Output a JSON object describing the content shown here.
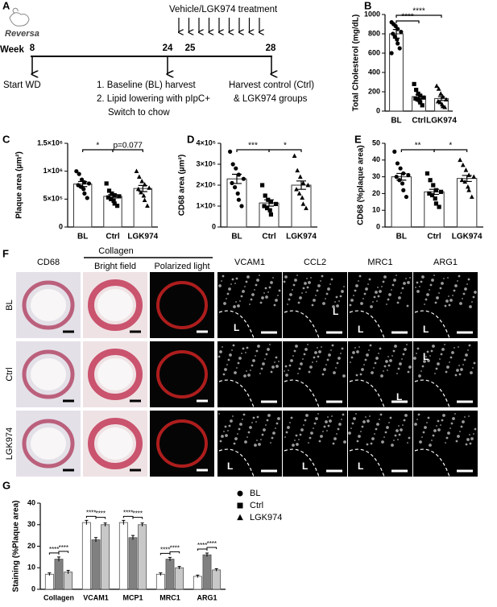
{
  "timeline": {
    "panel": "A",
    "logo": "Reversa",
    "week_label": "Week",
    "weeks": [
      8,
      24,
      25,
      28
    ],
    "treatment": "Vehicle/LGK974 treatment",
    "start": "Start WD",
    "step1": "1. Baseline (BL) harvest",
    "step2": "2. Lipid lowering with pIpC+",
    "step2b": "Switch to chow",
    "harvest1": "Harvest control (Ctrl)",
    "harvest2": "& LGK974 groups"
  },
  "micrographs": {
    "panel": "F",
    "group_label": "Collagen",
    "columns": [
      "CD68",
      "Bright field",
      "Polarized light",
      "VCAM1",
      "CCL2",
      "MRC1",
      "ARG1"
    ],
    "rows": [
      "BL",
      "Ctrl",
      "LGK974"
    ],
    "lumen_label": "L"
  },
  "chart_data": [
    {
      "type": "bar",
      "panel": "B",
      "ylabel": "Total Cholesterol (mg/dL)",
      "categories": [
        "BL",
        "Ctrl",
        "LGK974"
      ],
      "markers": [
        "circle",
        "square",
        "triangle"
      ],
      "values": [
        800,
        150,
        130
      ],
      "errors": [
        45,
        20,
        20
      ],
      "points": [
        [
          920,
          900,
          880,
          850,
          820,
          800,
          770,
          740,
          700,
          650,
          600
        ],
        [
          280,
          220,
          180,
          160,
          140,
          130,
          120,
          110,
          90,
          60
        ],
        [
          260,
          230,
          180,
          150,
          120,
          100,
          90,
          70,
          50,
          40
        ]
      ],
      "ylim": [
        0,
        1000
      ],
      "yticks": [
        0,
        200,
        400,
        600,
        800,
        1000
      ],
      "brackets": [
        {
          "between": [
            "BL",
            "Ctrl"
          ],
          "label": "****"
        },
        {
          "between": [
            "BL",
            "LGK974"
          ],
          "label": "****"
        }
      ]
    },
    {
      "type": "bar",
      "panel": "C",
      "ylabel": "Plaque area (µm²)",
      "categories": [
        "BL",
        "Ctrl",
        "LGK974"
      ],
      "markers": [
        "circle",
        "square",
        "triangle"
      ],
      "values": [
        770000,
        550000,
        690000
      ],
      "errors": [
        45000,
        30000,
        55000
      ],
      "points": [
        [
          1000000,
          950000,
          850000,
          800000,
          780000,
          750000,
          720000,
          680000,
          600000,
          520000
        ],
        [
          780000,
          650000,
          600000,
          570000,
          550000,
          530000,
          500000,
          470000,
          420000,
          380000
        ],
        [
          1000000,
          900000,
          820000,
          760000,
          700000,
          680000,
          620000,
          560000,
          480000,
          380000
        ]
      ],
      "ylim": [
        0,
        1500000
      ],
      "yticks": [
        0,
        {
          "value": 500000,
          "label": "5×10⁵"
        },
        {
          "value": 1000000,
          "label": "1×10⁶"
        },
        {
          "value": 1500000,
          "label": "1.5×10⁶"
        }
      ],
      "brackets": [
        {
          "between": [
            "BL",
            "Ctrl"
          ],
          "label": "*"
        },
        {
          "between": [
            "Ctrl",
            "LGK974"
          ],
          "label": "p=0.077"
        }
      ]
    },
    {
      "type": "bar",
      "panel": "D",
      "ylabel": "CD68 area (µm²)",
      "categories": [
        "BL",
        "Ctrl",
        "LGK974"
      ],
      "markers": [
        "circle",
        "square",
        "triangle"
      ],
      "values": [
        230000,
        115000,
        200000
      ],
      "errors": [
        22000,
        15000,
        20000
      ],
      "points": [
        [
          360000,
          300000,
          280000,
          250000,
          230000,
          210000,
          190000,
          160000,
          130000,
          100000
        ],
        [
          200000,
          150000,
          130000,
          120000,
          110000,
          100000,
          90000,
          80000,
          60000
        ],
        [
          340000,
          270000,
          240000,
          210000,
          200000,
          180000,
          160000,
          140000,
          110000,
          90000
        ]
      ],
      "ylim": [
        0,
        400000
      ],
      "yticks": [
        0,
        {
          "value": 100000,
          "label": "1×10⁵"
        },
        {
          "value": 200000,
          "label": "2×10⁵"
        },
        {
          "value": 300000,
          "label": "3×10⁵"
        },
        {
          "value": 400000,
          "label": "4×10⁵"
        }
      ],
      "brackets": [
        {
          "between": [
            "BL",
            "Ctrl"
          ],
          "label": "***"
        },
        {
          "between": [
            "Ctrl",
            "LGK974"
          ],
          "label": "*"
        }
      ]
    },
    {
      "type": "bar",
      "panel": "E",
      "ylabel": "CD68 (%plaque area)",
      "categories": [
        "BL",
        "Ctrl",
        "LGK974"
      ],
      "markers": [
        "circle",
        "square",
        "triangle"
      ],
      "values": [
        30,
        21,
        29
      ],
      "errors": [
        2,
        1.5,
        1.8
      ],
      "points": [
        [
          45,
          38,
          35,
          32,
          31,
          30,
          28,
          26,
          22,
          18
        ],
        [
          32,
          28,
          25,
          22,
          21,
          20,
          19,
          17,
          14,
          12
        ],
        [
          40,
          37,
          34,
          31,
          30,
          28,
          27,
          24,
          22,
          18
        ]
      ],
      "ylim": [
        0,
        50
      ],
      "yticks": [
        0,
        10,
        20,
        30,
        40,
        50
      ],
      "brackets": [
        {
          "between": [
            "BL",
            "Ctrl"
          ],
          "label": "**"
        },
        {
          "between": [
            "Ctrl",
            "LGK974"
          ],
          "label": "*"
        }
      ]
    },
    {
      "type": "grouped_bar",
      "panel": "G",
      "ylabel": "Staining (%Plaque area)",
      "categories": [
        "Collagen",
        "VCAM1",
        "MCP1",
        "MRC1",
        "ARG1"
      ],
      "series": [
        {
          "name": "BL",
          "color": "#ffffff",
          "marker": "circle",
          "values": [
            7,
            31,
            31,
            7,
            6
          ],
          "errors": [
            0.6,
            1,
            1,
            0.6,
            0.6
          ]
        },
        {
          "name": "Ctrl",
          "color": "#808080",
          "marker": "square",
          "values": [
            14,
            23,
            24,
            14,
            16
          ],
          "errors": [
            1,
            1,
            1,
            0.8,
            0.8
          ]
        },
        {
          "name": "LGK974",
          "color": "#c8c8c8",
          "marker": "triangle",
          "values": [
            8,
            30,
            30,
            10,
            9
          ],
          "errors": [
            0.8,
            0.8,
            0.8,
            0.6,
            0.6
          ]
        }
      ],
      "sig_pairs": [
        [
          "BL",
          "Ctrl"
        ],
        [
          "Ctrl",
          "LGK974"
        ]
      ],
      "sig_labels": [
        [
          "****",
          "****"
        ],
        [
          "****",
          "****"
        ],
        [
          "****",
          "****"
        ],
        [
          "****",
          "****"
        ],
        [
          "****",
          "****"
        ]
      ],
      "ylim": [
        0,
        40
      ],
      "yticks": [
        0,
        10,
        20,
        30,
        40
      ]
    }
  ]
}
